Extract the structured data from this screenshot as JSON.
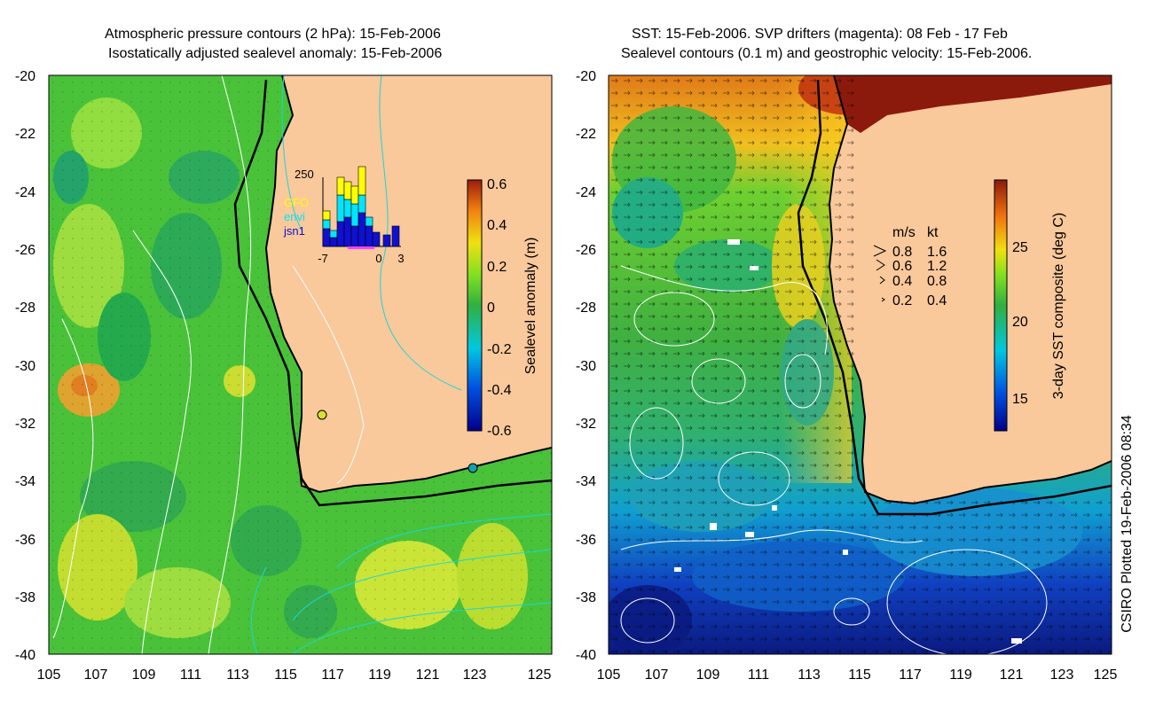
{
  "left_panel": {
    "title_line1": "Atmospheric pressure contours (2 hPa): 15-Feb-2006",
    "title_line2": "Isostatically adjusted sealevel anomaly: 15-Feb-2006",
    "colorbar_label": "Sealevel anomaly (m)",
    "colorbar_ticks": [
      "0.6",
      "0.4",
      "0.2",
      "0",
      "-0.2",
      "-0.4",
      "-0.6"
    ],
    "inset": {
      "top_label": "250",
      "legend": [
        "GFO",
        "envi",
        "jsn1"
      ],
      "x_ticks": [
        "-7",
        "0",
        "3"
      ],
      "colors": {
        "gfo": "#ffff00",
        "envi": "#00e5ff",
        "jsn1": "#1010d0"
      }
    }
  },
  "right_panel": {
    "title_line1": "SST: 15-Feb-2006. SVP drifters (magenta): 08 Feb - 17 Feb",
    "title_line2": "Sealevel contours (0.1 m) and geostrophic velocity: 15-Feb-2006.",
    "colorbar_label": "3-day SST composite (deg C)",
    "colorbar_ticks": [
      "25",
      "20",
      "15"
    ],
    "velocity_legend": {
      "header_ms": "m/s",
      "header_kt": "kt",
      "rows": [
        {
          "ms": "0.8",
          "kt": "1.6"
        },
        {
          "ms": "0.6",
          "kt": "1.2"
        },
        {
          "ms": "0.4",
          "kt": "0.8"
        },
        {
          "ms": "0.2",
          "kt": "0.4"
        }
      ]
    }
  },
  "axes": {
    "y_ticks": [
      "-20",
      "-22",
      "-24",
      "-26",
      "-28",
      "-30",
      "-32",
      "-34",
      "-36",
      "-38",
      "-40"
    ],
    "x_ticks": [
      "105",
      "107",
      "109",
      "111",
      "113",
      "115",
      "117",
      "119",
      "121",
      "123",
      "125"
    ]
  },
  "footer_label": "CSIRO Plotted 19-Feb-2006 08:34",
  "colors": {
    "land": "#f9c89b",
    "sea_green": "#49c23a",
    "coast": "#000000",
    "contour_white": "#ffffff",
    "contour_cyan": "#18d8d8"
  }
}
